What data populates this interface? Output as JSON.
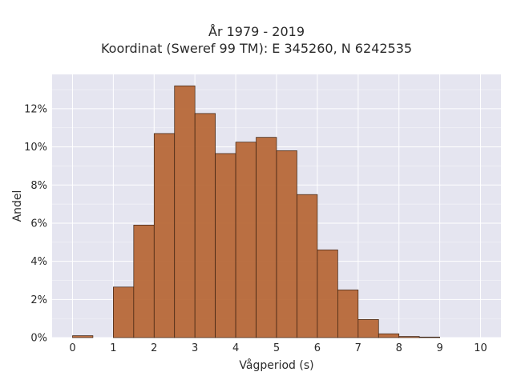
{
  "chart_data": {
    "type": "bar",
    "title_lines": [
      "År 1979 - 2019",
      "Koordinat (Sweref 99 TM): E 345260, N 6242535"
    ],
    "xlabel": "Vågperiod (s)",
    "ylabel": "Andel",
    "x_ticks": [
      0,
      1,
      2,
      3,
      4,
      5,
      6,
      7,
      8,
      9,
      10
    ],
    "y_ticks": [
      0,
      2,
      4,
      6,
      8,
      10,
      12
    ],
    "y_tick_labels": [
      "0%",
      "2%",
      "4%",
      "6%",
      "8%",
      "10%",
      "12%"
    ],
    "xlim": [
      -0.5,
      10.5
    ],
    "ylim": [
      0,
      13.8
    ],
    "bin_width": 0.5,
    "bin_starts": [
      0,
      0.5,
      1,
      1.5,
      2,
      2.5,
      3,
      3.5,
      4,
      4.5,
      5,
      5.5,
      6,
      6.5,
      7,
      7.5,
      8,
      8.5,
      9,
      9.5
    ],
    "values": [
      0.1,
      0,
      2.65,
      5.9,
      10.7,
      13.2,
      11.75,
      9.65,
      10.25,
      10.5,
      9.8,
      7.5,
      4.6,
      2.5,
      0.95,
      0.2,
      0.06,
      0.03,
      0,
      0
    ],
    "grid": true,
    "legend": "none",
    "colors": {
      "bar_fill": "#b5622f",
      "bar_edge": "#3a2010",
      "plot_bg": "#e5e5f0",
      "grid": "#ffffff"
    }
  }
}
